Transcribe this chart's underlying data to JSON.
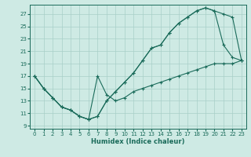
{
  "xlabel": "Humidex (Indice chaleur)",
  "bg_color": "#ceeae4",
  "grid_color": "#a8cfc8",
  "line_color": "#1a6b5a",
  "xlim": [
    -0.5,
    23.5
  ],
  "ylim": [
    8.5,
    28.5
  ],
  "xticks": [
    0,
    1,
    2,
    3,
    4,
    5,
    6,
    7,
    8,
    9,
    10,
    11,
    12,
    13,
    14,
    15,
    16,
    17,
    18,
    19,
    20,
    21,
    22,
    23
  ],
  "yticks": [
    9,
    11,
    13,
    15,
    17,
    19,
    21,
    23,
    25,
    27
  ],
  "line1_x": [
    0,
    1,
    2,
    3,
    4,
    5,
    6,
    7,
    8,
    9,
    10,
    11,
    12,
    13,
    14,
    15,
    16,
    17,
    18,
    19,
    20,
    21,
    22,
    23
  ],
  "line1_y": [
    17,
    15,
    13.5,
    12,
    11.5,
    10.5,
    10,
    10.5,
    13,
    14.5,
    16,
    17.5,
    19.5,
    21.5,
    22,
    24,
    25.5,
    26.5,
    27.5,
    28,
    27.5,
    22,
    20,
    19.5
  ],
  "line2_x": [
    0,
    1,
    2,
    3,
    4,
    5,
    6,
    7,
    8,
    9,
    10,
    11,
    12,
    13,
    14,
    15,
    16,
    17,
    18,
    19,
    20,
    21,
    22,
    23
  ],
  "line2_y": [
    17,
    15,
    13.5,
    12,
    11.5,
    10.5,
    10,
    10.5,
    13,
    14.5,
    16,
    17.5,
    19.5,
    21.5,
    22,
    24,
    25.5,
    26.5,
    27.5,
    28,
    27.5,
    27,
    26.5,
    19.5
  ],
  "line3_x": [
    0,
    1,
    2,
    3,
    4,
    5,
    6,
    7,
    8,
    9,
    10,
    11,
    12,
    13,
    14,
    15,
    16,
    17,
    18,
    19,
    20,
    21,
    22,
    23
  ],
  "line3_y": [
    17,
    15,
    13.5,
    12,
    11.5,
    10.5,
    10,
    17,
    14,
    13,
    13.5,
    14.5,
    15,
    15.5,
    16,
    16.5,
    17,
    17.5,
    18,
    18.5,
    19,
    19,
    19,
    19.5
  ]
}
